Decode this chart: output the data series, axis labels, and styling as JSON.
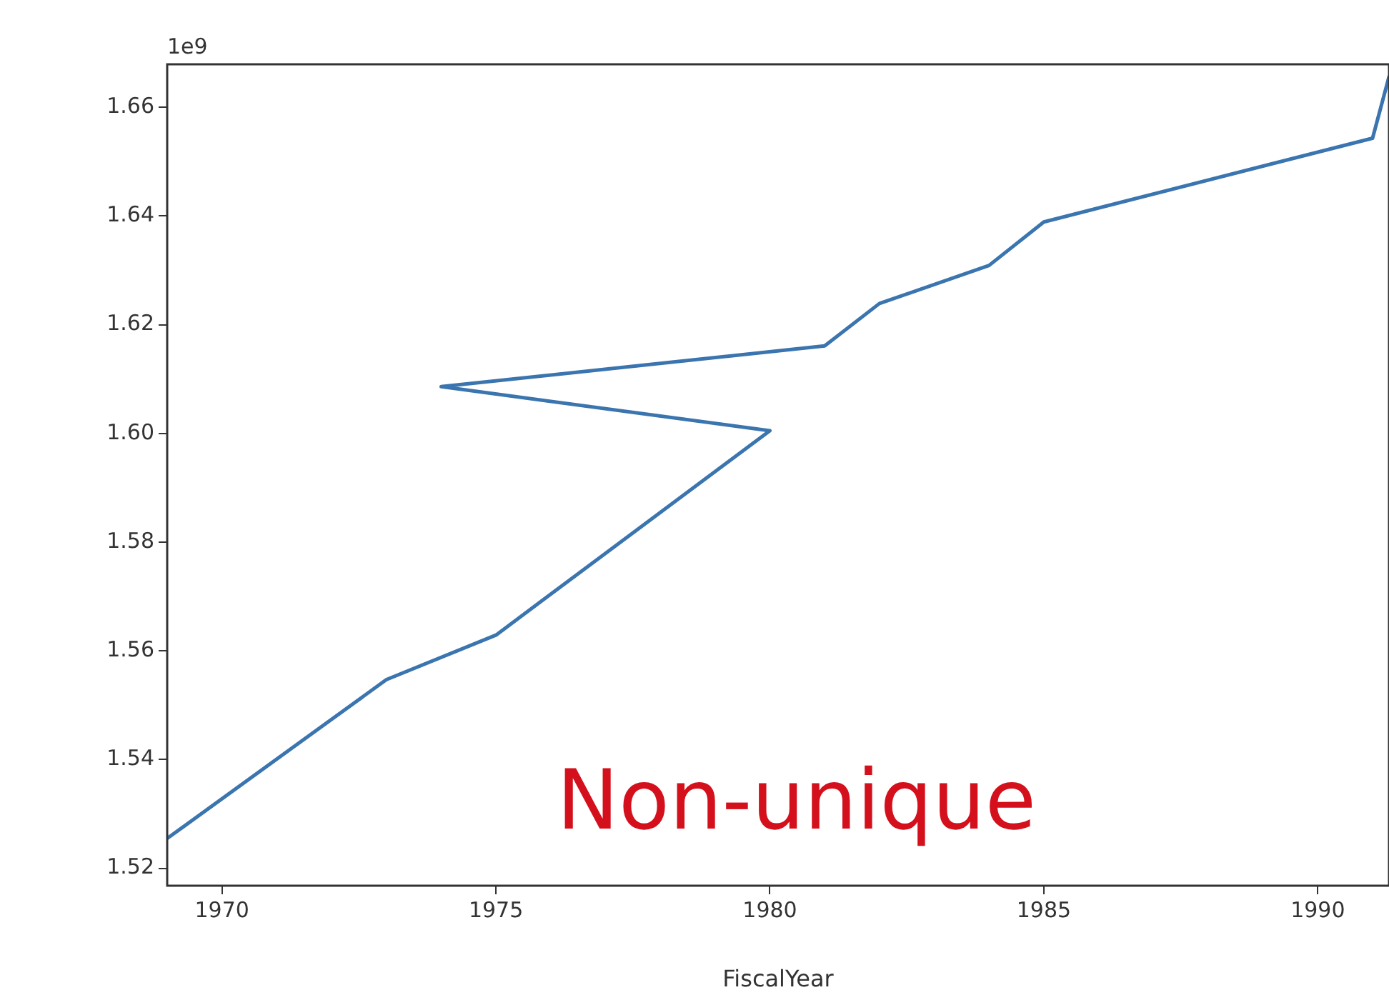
{
  "chart_data": {
    "type": "line",
    "xlabel": "FiscalYear",
    "x": [
      1969,
      1973,
      1975,
      1980,
      1974,
      1981,
      1982,
      1984,
      1985,
      1991,
      1991.3
    ],
    "series": [
      {
        "color": "#3b75af",
        "values": [
          1.5255,
          1.5547,
          1.5629,
          1.6005,
          1.6086,
          1.6161,
          1.6239,
          1.6309,
          1.6389,
          1.6543,
          1.6656
        ]
      }
    ],
    "xlim": [
      1969,
      1991.3
    ],
    "xticks": [
      1970,
      1975,
      1980,
      1985,
      1990
    ],
    "ylim": [
      1.5168,
      1.6679
    ],
    "yticks": [
      1.52,
      1.54,
      1.56,
      1.58,
      {
        "value": 1.6,
        "label": "1.60"
      },
      1.62,
      1.64,
      1.66
    ],
    "annotations": [
      "1e9",
      "Non-unique"
    ],
    "grid": false,
    "legend": false,
    "marker": "none",
    "line_style": "solid"
  }
}
